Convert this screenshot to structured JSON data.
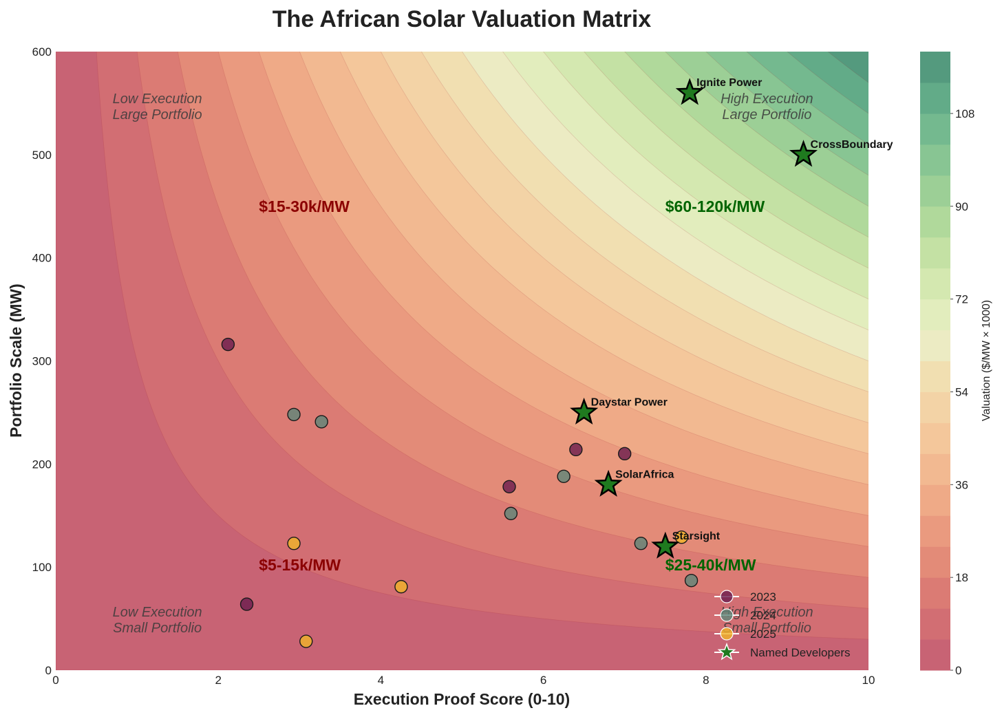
{
  "chart_data": {
    "type": "scatter",
    "title": "The African Solar Valuation Matrix",
    "xlabel": "Execution Proof Score (0-10)",
    "ylabel": "Portfolio Scale (MW)",
    "xlim": [
      0,
      10
    ],
    "ylim": [
      0,
      600
    ],
    "xticks": [
      0,
      2,
      4,
      6,
      8,
      10
    ],
    "yticks": [
      0,
      100,
      200,
      300,
      400,
      500,
      600
    ],
    "grid": false,
    "background": {
      "type": "contour",
      "formula": "valuation = x * y / 50",
      "levels": [
        0,
        6,
        12,
        18,
        24,
        30,
        36,
        42,
        48,
        54,
        60,
        66,
        72,
        78,
        84,
        90,
        96,
        102,
        108,
        114,
        120
      ],
      "colors": [
        "#c86374",
        "#d26e73",
        "#db7b74",
        "#e38b78",
        "#ea9a7f",
        "#efaa87",
        "#f2b991",
        "#f4c79b",
        "#f3d3a6",
        "#f1dfb1",
        "#ecebc3",
        "#e2edbd",
        "#d4e8b0",
        "#c4e1a4",
        "#b0d99b",
        "#9ccf96",
        "#88c593",
        "#74b98f",
        "#62ab88",
        "#549a7e"
      ]
    },
    "colorbar": {
      "label": "Valuation ($/MW × 1000)",
      "ticks": [
        0,
        18,
        36,
        54,
        72,
        90,
        108
      ]
    },
    "quadrant_labels": [
      {
        "lines": [
          "Low Execution",
          "Large Portfolio"
        ],
        "x": 1.25,
        "y": 548
      },
      {
        "lines": [
          "High Execution",
          "Large Portfolio"
        ],
        "x": 8.75,
        "y": 548
      },
      {
        "lines": [
          "Low Execution",
          "Small Portfolio"
        ],
        "x": 1.25,
        "y": 50
      },
      {
        "lines": [
          "High Execution",
          "Small Portfolio"
        ],
        "x": 8.75,
        "y": 50
      }
    ],
    "price_labels": [
      {
        "text": "$15-30k/MW",
        "x": 2.5,
        "y": 450,
        "color": "#8b0000"
      },
      {
        "text": "$60-120k/MW",
        "x": 7.5,
        "y": 450,
        "color": "#006400"
      },
      {
        "text": "$5-15k/MW",
        "x": 2.5,
        "y": 102,
        "color": "#8b0000"
      },
      {
        "text": "$25-40k/MW",
        "x": 7.5,
        "y": 102,
        "color": "#006400"
      }
    ],
    "series": [
      {
        "name": "2023",
        "color": "#6a1b4d",
        "points": [
          [
            2.12,
            316
          ],
          [
            2.35,
            64
          ],
          [
            5.58,
            178
          ],
          [
            6.4,
            214
          ],
          [
            7.0,
            210
          ]
        ]
      },
      {
        "name": "2024",
        "color": "#5e8779",
        "points": [
          [
            2.93,
            248
          ],
          [
            3.27,
            241
          ],
          [
            5.6,
            152
          ],
          [
            6.25,
            188
          ],
          [
            7.2,
            123
          ],
          [
            7.82,
            87
          ]
        ]
      },
      {
        "name": "2025",
        "color": "#f0b429",
        "points": [
          [
            2.93,
            123
          ],
          [
            3.08,
            28
          ],
          [
            4.25,
            81
          ],
          [
            7.7,
            129
          ]
        ]
      }
    ],
    "named_developers": {
      "name": "Named Developers",
      "color": "#1f7a1f",
      "points": [
        {
          "label": "Ignite Power",
          "x": 7.8,
          "y": 560
        },
        {
          "label": "CrossBoundary",
          "x": 9.2,
          "y": 500
        },
        {
          "label": "Daystar Power",
          "x": 6.5,
          "y": 250
        },
        {
          "label": "SolarAfrica",
          "x": 6.8,
          "y": 180
        },
        {
          "label": "Starsight",
          "x": 7.5,
          "y": 120
        }
      ]
    },
    "legend": {
      "position": "lower-right",
      "entries": [
        "2023",
        "2024",
        "2025",
        "Named Developers"
      ]
    }
  }
}
